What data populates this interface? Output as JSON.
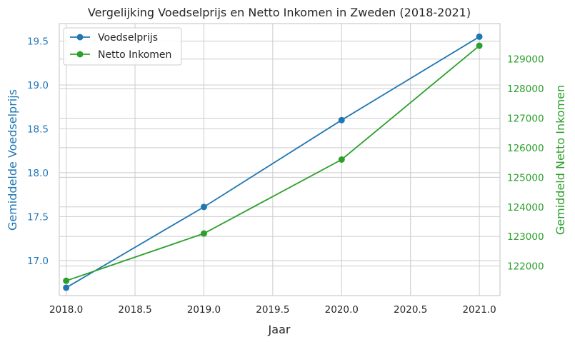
{
  "chart_data": {
    "type": "line",
    "title": "Vergelijking Voedselprijs en Netto Inkomen in Zweden (2018-2021)",
    "xlabel": "Jaar",
    "ylabel_left": "Gemiddelde Voedselprijs",
    "ylabel_right": "Gemiddeld Netto Inkomen",
    "x": [
      2018,
      2019,
      2020,
      2021
    ],
    "xlim": [
      2017.95,
      2021.15
    ],
    "xticks": [
      "2018.0",
      "2018.5",
      "2019.0",
      "2019.5",
      "2020.0",
      "2020.5",
      "2021.0"
    ],
    "ylim_left": [
      16.6,
      19.7
    ],
    "yticks_left": [
      "17.0",
      "17.5",
      "18.0",
      "18.5",
      "19.0",
      "19.5"
    ],
    "ylim_right": [
      121000,
      130200
    ],
    "yticks_right": [
      "122000",
      "123000",
      "124000",
      "125000",
      "126000",
      "127000",
      "128000",
      "129000"
    ],
    "grid": true,
    "legend_position": "top-left",
    "series": [
      {
        "name": "Voedselprijs",
        "axis": "left",
        "color": "#1f77b4",
        "values": [
          16.69,
          17.61,
          18.6,
          19.55
        ]
      },
      {
        "name": "Netto Inkomen",
        "axis": "right",
        "color": "#2ca02c",
        "values": [
          121500,
          123100,
          125600,
          129450
        ]
      }
    ],
    "colors": {
      "left_axis": "#1f77b4",
      "right_axis": "#2ca02c",
      "text": "#262626",
      "grid": "#cccccc"
    }
  }
}
